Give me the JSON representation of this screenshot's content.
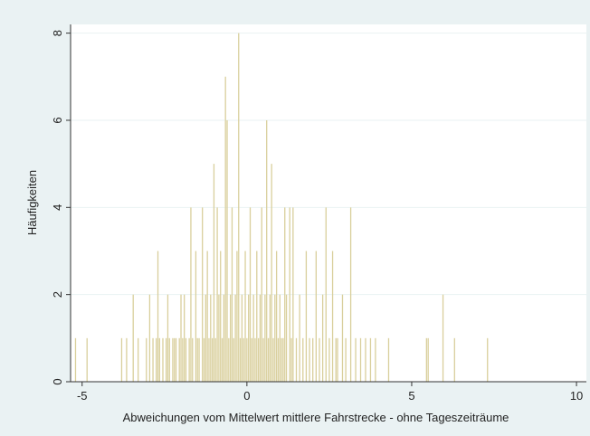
{
  "chart_data": {
    "type": "spike",
    "xlabel": "Abweichungen vom Mittelwert mittlere Fahrstrecke - ohne Tageszeiträume",
    "ylabel": "Häufigkeiten",
    "color": "#d9cf9c",
    "grid": true,
    "xlim": [
      -5.35,
      10.3
    ],
    "xticks": [
      -5,
      0,
      5,
      10
    ],
    "ylim": [
      0,
      8.2
    ],
    "yticks": [
      0,
      2,
      4,
      6,
      8
    ],
    "x": [
      -5.2,
      -4.85,
      -3.8,
      -3.65,
      -3.45,
      -3.3,
      -3.05,
      -2.95,
      -2.85,
      -2.75,
      -2.7,
      -2.65,
      -2.55,
      -2.45,
      -2.4,
      -2.35,
      -2.25,
      -2.2,
      -2.15,
      -2.05,
      -2.0,
      -1.95,
      -1.9,
      -1.85,
      -1.75,
      -1.7,
      -1.65,
      -1.55,
      -1.5,
      -1.45,
      -1.35,
      -1.3,
      -1.25,
      -1.2,
      -1.15,
      -1.1,
      -1.05,
      -1.0,
      -0.95,
      -0.9,
      -0.85,
      -0.8,
      -0.75,
      -0.7,
      -0.65,
      -0.6,
      -0.55,
      -0.5,
      -0.45,
      -0.4,
      -0.35,
      -0.3,
      -0.25,
      -0.2,
      -0.15,
      -0.1,
      -0.05,
      0.0,
      0.05,
      0.1,
      0.15,
      0.2,
      0.25,
      0.3,
      0.35,
      0.4,
      0.45,
      0.5,
      0.55,
      0.6,
      0.65,
      0.7,
      0.75,
      0.8,
      0.85,
      0.9,
      0.95,
      1.0,
      1.05,
      1.1,
      1.15,
      1.2,
      1.3,
      1.35,
      1.4,
      1.5,
      1.6,
      1.7,
      1.8,
      1.9,
      2.0,
      2.1,
      2.2,
      2.3,
      2.4,
      2.5,
      2.6,
      2.7,
      2.75,
      2.9,
      3.0,
      3.15,
      3.3,
      3.45,
      3.6,
      3.75,
      3.9,
      4.3,
      5.45,
      5.5,
      5.95,
      6.3,
      7.3
    ],
    "values": [
      1,
      1,
      1,
      1,
      2,
      1,
      1,
      2,
      1,
      1,
      3,
      1,
      1,
      1,
      2,
      1,
      1,
      1,
      1,
      1,
      2,
      1,
      2,
      1,
      1,
      4,
      1,
      3,
      1,
      1,
      4,
      1,
      2,
      3,
      1,
      2,
      1,
      5,
      1,
      4,
      2,
      3,
      1,
      2,
      7,
      6,
      1,
      2,
      4,
      1,
      2,
      3,
      8,
      1,
      2,
      1,
      3,
      1,
      2,
      4,
      1,
      2,
      1,
      3,
      1,
      2,
      4,
      1,
      2,
      6,
      1,
      2,
      5,
      1,
      2,
      3,
      1,
      2,
      1,
      1,
      4,
      2,
      4,
      1,
      4,
      1,
      2,
      1,
      3,
      1,
      1,
      3,
      1,
      2,
      4,
      1,
      3,
      1,
      1,
      2,
      1,
      4,
      1,
      1,
      1,
      1,
      1,
      1,
      1,
      1,
      2,
      1,
      1
    ]
  }
}
